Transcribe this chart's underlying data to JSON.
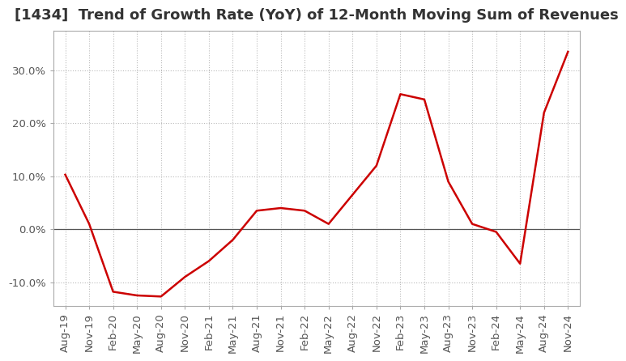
{
  "title": "[1434]  Trend of Growth Rate (YoY) of 12-Month Moving Sum of Revenues",
  "line_color": "#cc0000",
  "background_color": "#ffffff",
  "grid_color": "#bbbbbb",
  "x_labels": [
    "Aug-19",
    "Nov-19",
    "Feb-20",
    "May-20",
    "Aug-20",
    "Nov-20",
    "Feb-21",
    "May-21",
    "Aug-21",
    "Nov-21",
    "Feb-22",
    "May-22",
    "Aug-22",
    "Nov-22",
    "Feb-23",
    "May-23",
    "Aug-23",
    "Nov-23",
    "Feb-24",
    "May-24",
    "Aug-24",
    "Nov-24"
  ],
  "y_values": [
    0.103,
    0.01,
    -0.118,
    -0.125,
    -0.127,
    -0.09,
    -0.06,
    -0.02,
    0.035,
    0.04,
    0.035,
    0.01,
    0.065,
    0.12,
    0.255,
    0.245,
    0.09,
    0.01,
    -0.005,
    -0.065,
    0.22,
    0.335
  ],
  "ylim": [
    -0.145,
    0.375
  ],
  "yticks": [
    -0.1,
    0.0,
    0.1,
    0.2,
    0.3
  ],
  "title_fontsize": 13,
  "tick_fontsize": 9.5
}
